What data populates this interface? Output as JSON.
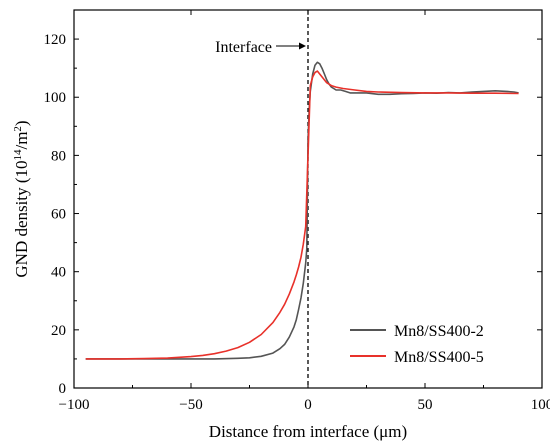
{
  "chart_data": {
    "type": "line",
    "xlabel": "Distance from interface (μm)",
    "ylabel": "GND density (10",
    "ylabel_sup1": "14",
    "ylabel_mid": "/m",
    "ylabel_sup2": "2",
    "ylabel_end": ")",
    "xlim": [
      -100,
      100
    ],
    "ylim": [
      0,
      130
    ],
    "xticks": [
      -100,
      -50,
      0,
      50,
      100
    ],
    "yticks": [
      0,
      20,
      40,
      60,
      80,
      100,
      120
    ],
    "grid": false,
    "legend_position": "bottom-right",
    "annotation": {
      "text": "Interface",
      "x": 0
    },
    "series": [
      {
        "name": "Mn8/SS400-2",
        "color": "#555555",
        "x": [
          -95,
          -80,
          -60,
          -50,
          -40,
          -30,
          -25,
          -20,
          -15,
          -12,
          -10,
          -8,
          -6,
          -5,
          -4,
          -3,
          -2,
          -1,
          -0.5,
          0,
          0.5,
          1,
          2,
          3,
          4,
          5,
          6,
          7,
          8,
          9,
          10,
          12,
          14,
          16,
          18,
          20,
          25,
          30,
          35,
          40,
          45,
          50,
          55,
          60,
          65,
          70,
          75,
          80,
          85,
          88,
          90
        ],
        "y": [
          10,
          10,
          10,
          10,
          10,
          10.2,
          10.4,
          10.9,
          12,
          13.5,
          15,
          17.5,
          21,
          23.5,
          27,
          31,
          36,
          43,
          48,
          85,
          96,
          102,
          108,
          111,
          112,
          111.5,
          110,
          108,
          106,
          104.5,
          103.5,
          102.5,
          102.5,
          102,
          101.5,
          101.5,
          101.5,
          101,
          101,
          101.2,
          101.3,
          101.5,
          101.4,
          101.6,
          101.5,
          101.8,
          102,
          102.2,
          102,
          101.8,
          101.5
        ]
      },
      {
        "name": "Mn8/SS400-5",
        "color": "#e8312a",
        "x": [
          -95,
          -80,
          -70,
          -60,
          -50,
          -45,
          -40,
          -35,
          -30,
          -25,
          -20,
          -15,
          -12,
          -10,
          -8,
          -6,
          -5,
          -4,
          -3,
          -2,
          -1,
          1,
          2,
          3,
          4,
          5,
          6,
          8,
          10,
          12,
          15,
          20,
          25,
          30,
          40,
          50,
          60,
          70,
          80,
          90
        ],
        "y": [
          10,
          10,
          10.1,
          10.3,
          10.8,
          11.2,
          11.8,
          12.7,
          13.9,
          15.7,
          18.4,
          22.5,
          26,
          28.8,
          32.3,
          36.5,
          38.9,
          41.6,
          45,
          49.5,
          55.5,
          104,
          107,
          108.5,
          109,
          108,
          107,
          105,
          104,
          103.5,
          103,
          102.5,
          102,
          101.8,
          101.6,
          101.5,
          101.5,
          101.4,
          101.4,
          101.3
        ]
      }
    ]
  }
}
